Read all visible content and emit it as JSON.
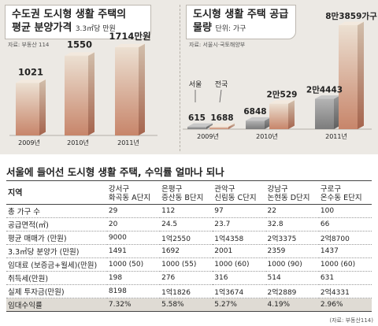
{
  "left_chart": {
    "title_line1": "수도권 도시형 생활 주택의",
    "title_line2": "평균 분양가격",
    "unit": "3.3㎡당 만원",
    "source": "자료: 부동산 114"
  },
  "right_chart": {
    "title_line1": "도시형 생활 주택 공급",
    "title_line2": "물량",
    "unit": "단위: 가구",
    "source": "자료: 서울시·국토해양부",
    "seoul_label": "서울",
    "nation_label": "전국"
  },
  "chart_data": [
    {
      "type": "bar",
      "categories": [
        "2009년",
        "2010년",
        "2011년"
      ],
      "series": [
        {
          "values": [
            1021,
            1550,
            1714
          ]
        }
      ],
      "data_labels": [
        "1021",
        "1550",
        "1714만원"
      ],
      "title": "수도권 도시형 생활 주택의 평균 분양가격",
      "unit": "3.3㎡당 만원"
    },
    {
      "type": "bar",
      "categories": [
        "2009년",
        "2010년",
        "2011년"
      ],
      "series": [
        {
          "name": "서울",
          "values": [
            615,
            6848,
            24443
          ]
        },
        {
          "name": "전국",
          "values": [
            1688,
            20529,
            83859
          ]
        }
      ],
      "data_labels": [
        [
          "615",
          "6848",
          "2만4443"
        ],
        [
          "1688",
          "2만529",
          "8만3859가구"
        ]
      ],
      "title": "도시형 생활 주택 공급 물량",
      "unit": "가구"
    }
  ],
  "table": {
    "title": "서울에 들어선 도시형 생활 주택, 수익률 얼마나 되나",
    "columns": [
      "지역",
      "강서구\n화곡동 A단지",
      "은평구\n증산동 B단지",
      "관악구\n신림동 C단지",
      "강남구\n논현동 D단지",
      "구로구\n온수동 E단지"
    ],
    "rows": [
      [
        "총 가구 수",
        "29",
        "112",
        "97",
        "22",
        "100"
      ],
      [
        "공급면적(㎡)",
        "20",
        "24.5",
        "23.7",
        "32.8",
        "66"
      ],
      [
        "평균 매매가 (만원)",
        "9000",
        "1억2550",
        "1억4358",
        "2억3375",
        "2억8700"
      ],
      [
        "3.3㎡당 분양가 (만원)",
        "1491",
        "1692",
        "2001",
        "2359",
        "1437"
      ],
      [
        "임대료 (보증금+월세)(만원)",
        "1000 (50)",
        "1000 (55)",
        "1000 (60)",
        "1000 (90)",
        "1000 (60)"
      ],
      [
        "취득세(만원)",
        "198",
        "276",
        "316",
        "514",
        "631"
      ],
      [
        "실제 투자금(만원)",
        "8198",
        "1억1826",
        "1억3674",
        "2억2889",
        "2억4331"
      ],
      [
        "임대수익률",
        "7.32%",
        "5.58%",
        "5.27%",
        "4.19%",
        "2.96%"
      ]
    ],
    "source": "(자료: 부동산114)"
  },
  "colors": {
    "bar_top": "#ece0d2",
    "bar_bottom": "#c7856a",
    "bar_grey_top": "#b4b4b4",
    "bar_grey_bottom": "#7c7c7c",
    "accent": "#d26545"
  }
}
